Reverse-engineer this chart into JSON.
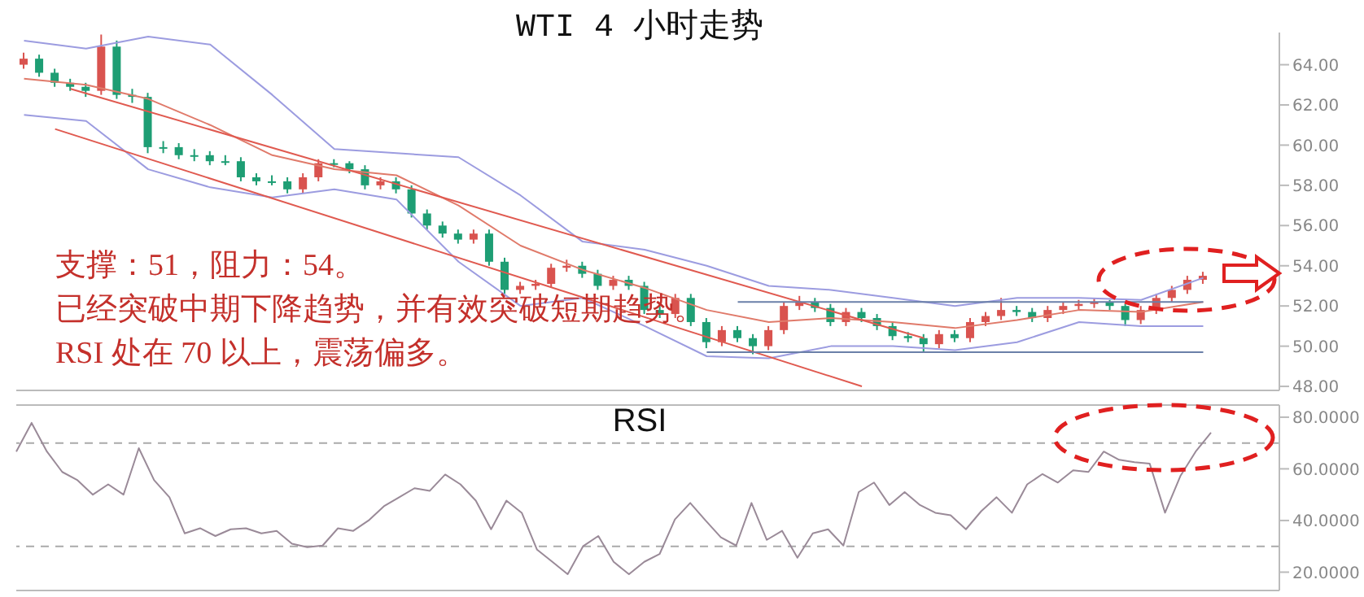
{
  "chart_data": [
    {
      "type": "candlestick",
      "title": "WTI 4 小时走势",
      "annotations": [
        "支撑：51，阻力：54。",
        "已经突破中期下降趋势，并有效突破短期趋势。",
        "RSI 处在 70 以上，震荡偏多。"
      ],
      "categories": [
        null,
        null,
        null,
        null,
        null,
        null,
        null,
        null,
        null,
        null,
        null,
        null,
        null,
        null,
        null,
        null,
        null,
        null,
        null,
        null,
        null,
        null,
        null,
        null,
        null,
        null,
        null,
        null,
        null,
        null,
        null,
        null,
        null,
        null,
        null,
        null,
        null,
        null,
        null,
        null,
        null,
        null,
        null,
        null,
        null,
        null,
        null,
        null,
        null,
        null,
        null,
        null,
        null,
        null,
        null,
        null,
        null,
        null,
        null,
        null,
        null,
        null,
        null,
        null,
        null,
        null,
        null,
        null,
        null,
        null,
        null,
        null,
        null,
        null,
        null,
        null,
        null
      ],
      "ohlc": [
        [
          64.0,
          64.6,
          63.8,
          64.3
        ],
        [
          64.3,
          64.5,
          63.4,
          63.6
        ],
        [
          63.6,
          63.8,
          62.9,
          63.1
        ],
        [
          63.1,
          63.3,
          62.7,
          62.9
        ],
        [
          62.9,
          63.1,
          62.4,
          62.7
        ],
        [
          62.7,
          65.5,
          62.5,
          64.9
        ],
        [
          64.9,
          65.2,
          62.3,
          62.5
        ],
        [
          62.5,
          62.8,
          62.1,
          62.4
        ],
        [
          62.4,
          62.6,
          59.6,
          59.9
        ],
        [
          59.9,
          60.2,
          59.6,
          59.9
        ],
        [
          59.9,
          60.1,
          59.3,
          59.5
        ],
        [
          59.5,
          59.8,
          59.2,
          59.5
        ],
        [
          59.5,
          59.7,
          59.0,
          59.2
        ],
        [
          59.2,
          59.5,
          59.0,
          59.2
        ],
        [
          59.2,
          59.4,
          58.2,
          58.4
        ],
        [
          58.4,
          58.6,
          58.0,
          58.2
        ],
        [
          58.2,
          58.5,
          58.0,
          58.2
        ],
        [
          58.2,
          58.4,
          57.6,
          57.8
        ],
        [
          57.8,
          58.6,
          57.6,
          58.4
        ],
        [
          58.4,
          59.3,
          58.2,
          59.1
        ],
        [
          59.1,
          59.3,
          58.9,
          59.1
        ],
        [
          59.1,
          59.2,
          58.6,
          58.8
        ],
        [
          58.8,
          59.0,
          57.8,
          58.0
        ],
        [
          58.0,
          58.4,
          57.8,
          58.2
        ],
        [
          58.2,
          58.4,
          57.6,
          57.8
        ],
        [
          57.8,
          58.0,
          56.4,
          56.6
        ],
        [
          56.6,
          56.8,
          55.8,
          56.0
        ],
        [
          56.0,
          56.2,
          55.4,
          55.6
        ],
        [
          55.6,
          55.8,
          55.1,
          55.3
        ],
        [
          55.3,
          55.8,
          55.1,
          55.6
        ],
        [
          55.6,
          55.8,
          54.0,
          54.2
        ],
        [
          54.2,
          54.4,
          52.6,
          52.8
        ],
        [
          52.8,
          53.2,
          52.6,
          53.0
        ],
        [
          53.0,
          53.3,
          52.8,
          53.1
        ],
        [
          53.1,
          54.1,
          52.9,
          53.9
        ],
        [
          53.9,
          54.3,
          53.7,
          54.0
        ],
        [
          54.0,
          54.2,
          53.4,
          53.6
        ],
        [
          53.6,
          53.8,
          52.8,
          53.0
        ],
        [
          53.0,
          53.5,
          52.8,
          53.3
        ],
        [
          53.3,
          53.5,
          52.8,
          53.0
        ],
        [
          53.0,
          53.2,
          51.6,
          51.8
        ],
        [
          51.8,
          52.0,
          51.4,
          51.6
        ],
        [
          51.6,
          52.6,
          51.4,
          52.4
        ],
        [
          52.4,
          52.6,
          51.0,
          51.2
        ],
        [
          51.2,
          51.4,
          49.9,
          50.2
        ],
        [
          50.2,
          51.0,
          50.0,
          50.8
        ],
        [
          50.8,
          51.0,
          50.2,
          50.4
        ],
        [
          50.4,
          50.6,
          49.6,
          50.0
        ],
        [
          50.0,
          51.0,
          49.8,
          50.8
        ],
        [
          50.8,
          52.2,
          50.6,
          52.0
        ],
        [
          52.0,
          52.5,
          51.8,
          52.2
        ],
        [
          52.2,
          52.4,
          51.7,
          51.9
        ],
        [
          51.9,
          52.1,
          51.0,
          51.2
        ],
        [
          51.2,
          51.9,
          51.0,
          51.7
        ],
        [
          51.7,
          51.9,
          51.2,
          51.4
        ],
        [
          51.4,
          51.6,
          50.8,
          51.0
        ],
        [
          51.0,
          51.2,
          50.3,
          50.5
        ],
        [
          50.5,
          50.7,
          50.2,
          50.4
        ],
        [
          50.4,
          50.6,
          49.7,
          50.1
        ],
        [
          50.1,
          50.8,
          49.9,
          50.6
        ],
        [
          50.6,
          50.8,
          50.2,
          50.4
        ],
        [
          50.4,
          51.4,
          50.2,
          51.2
        ],
        [
          51.2,
          51.7,
          51.0,
          51.5
        ],
        [
          51.5,
          52.4,
          51.3,
          51.8
        ],
        [
          51.8,
          52.0,
          51.5,
          51.7
        ],
        [
          51.7,
          51.9,
          51.2,
          51.4
        ],
        [
          51.4,
          52.0,
          51.2,
          51.8
        ],
        [
          51.8,
          52.2,
          51.6,
          52.0
        ],
        [
          52.0,
          52.3,
          51.8,
          52.1
        ],
        [
          52.1,
          52.4,
          51.9,
          52.2
        ],
        [
          52.2,
          52.3,
          51.8,
          52.0
        ],
        [
          52.0,
          52.1,
          51.0,
          51.3
        ],
        [
          51.3,
          52.0,
          51.1,
          51.8
        ],
        [
          51.8,
          52.6,
          51.6,
          52.4
        ],
        [
          52.4,
          53.0,
          52.2,
          52.8
        ],
        [
          52.8,
          53.5,
          52.6,
          53.3
        ],
        [
          53.3,
          53.7,
          53.1,
          53.5
        ]
      ],
      "colors": [
        "#d9534f",
        "#1e9e74",
        "#1e9e74",
        "#1e9e74",
        "#1e9e74",
        "#d9534f",
        "#1e9e74",
        "#1e9e74",
        "#1e9e74",
        "#1e9e74",
        "#1e9e74",
        "#1e9e74",
        "#1e9e74",
        "#1e9e74",
        "#1e9e74",
        "#1e9e74",
        "#1e9e74",
        "#1e9e74",
        "#d9534f",
        "#d9534f",
        "#1e9e74",
        "#1e9e74",
        "#1e9e74",
        "#d9534f",
        "#1e9e74",
        "#1e9e74",
        "#1e9e74",
        "#1e9e74",
        "#1e9e74",
        "#d9534f",
        "#1e9e74",
        "#1e9e74",
        "#d9534f",
        "#d9534f",
        "#d9534f",
        "#d9534f",
        "#1e9e74",
        "#1e9e74",
        "#d9534f",
        "#1e9e74",
        "#1e9e74",
        "#1e9e74",
        "#d9534f",
        "#1e9e74",
        "#1e9e74",
        "#d9534f",
        "#1e9e74",
        "#1e9e74",
        "#d9534f",
        "#d9534f",
        "#d9534f",
        "#1e9e74",
        "#1e9e74",
        "#d9534f",
        "#1e9e74",
        "#1e9e74",
        "#1e9e74",
        "#1e9e74",
        "#1e9e74",
        "#d9534f",
        "#1e9e74",
        "#d9534f",
        "#d9534f",
        "#d9534f",
        "#1e9e74",
        "#1e9e74",
        "#d9534f",
        "#d9534f",
        "#d9534f",
        "#d9534f",
        "#1e9e74",
        "#1e9e74",
        "#d9534f",
        "#d9534f",
        "#d9534f",
        "#d9534f",
        "#d9534f"
      ],
      "series": [
        {
          "type": "line",
          "color": "#9c9ce0",
          "values": [
            65.2,
            null,
            null,
            null,
            64.8,
            null,
            null,
            null,
            65.4,
            null,
            null,
            null,
            65.0,
            null,
            null,
            null,
            62.5,
            null,
            null,
            null,
            59.8,
            null,
            null,
            null,
            59.6,
            null,
            null,
            null,
            59.4,
            null,
            null,
            null,
            57.5,
            null,
            null,
            null,
            55.2,
            null,
            null,
            null,
            54.8,
            null,
            null,
            null,
            54.0,
            null,
            null,
            null,
            53.0,
            null,
            null,
            null,
            52.8,
            null,
            null,
            null,
            52.4,
            null,
            null,
            null,
            52.0,
            null,
            null,
            null,
            52.4,
            null,
            null,
            null,
            52.4,
            null,
            null,
            null,
            52.3,
            null,
            null,
            null,
            53.4
          ]
        },
        {
          "type": "line",
          "color": "#9c9ce0",
          "values": [
            61.5,
            null,
            null,
            null,
            61.2,
            null,
            null,
            null,
            58.8,
            null,
            null,
            null,
            57.9,
            null,
            null,
            null,
            57.4,
            null,
            null,
            null,
            57.8,
            null,
            null,
            null,
            57.3,
            null,
            null,
            null,
            54.2,
            null,
            null,
            null,
            52.0,
            null,
            null,
            null,
            52.4,
            null,
            null,
            null,
            51.0,
            null,
            null,
            null,
            49.5,
            null,
            null,
            null,
            49.4,
            null,
            null,
            null,
            50.0,
            null,
            null,
            null,
            50.0,
            null,
            null,
            null,
            49.8,
            null,
            null,
            null,
            50.2,
            null,
            null,
            null,
            51.2,
            null,
            null,
            null,
            51.0,
            null,
            null,
            null,
            51.0
          ]
        },
        {
          "type": "line",
          "color": "#e07a6a",
          "values": [
            63.3,
            null,
            null,
            null,
            63.0,
            null,
            null,
            null,
            62.3,
            null,
            null,
            null,
            61.0,
            null,
            null,
            null,
            59.5,
            null,
            null,
            null,
            58.8,
            null,
            null,
            null,
            58.5,
            null,
            null,
            null,
            57.0,
            null,
            null,
            null,
            55.0,
            null,
            null,
            null,
            53.8,
            null,
            null,
            null,
            52.9,
            null,
            null,
            null,
            51.8,
            null,
            null,
            null,
            51.2,
            null,
            null,
            null,
            51.4,
            null,
            null,
            null,
            51.2,
            null,
            null,
            null,
            50.9,
            null,
            null,
            null,
            51.3,
            null,
            null,
            null,
            51.8,
            null,
            null,
            null,
            51.7,
            null,
            null,
            null,
            52.2
          ]
        },
        {
          "type": "line",
          "color": "#e05a50",
          "values": [
            null,
            null,
            null,
            62.8,
            null,
            null,
            null,
            null,
            null,
            null,
            null,
            null,
            null,
            null,
            null,
            null,
            null,
            null,
            null,
            null,
            null,
            null,
            null,
            null,
            null,
            null,
            null,
            null,
            null,
            null,
            null,
            null,
            null,
            null,
            null,
            null,
            null,
            null,
            null,
            null,
            null,
            null,
            null,
            null,
            null,
            null,
            null,
            null,
            null,
            null,
            null,
            null,
            null,
            null,
            null,
            null,
            null,
            null,
            50.4,
            null,
            null,
            null,
            null,
            null,
            null,
            null,
            null,
            null,
            null,
            null,
            null,
            null,
            null,
            null,
            null,
            null,
            null
          ]
        },
        {
          "type": "line",
          "color": "#e05a50",
          "values": [
            null,
            null,
            60.8,
            null,
            null,
            null,
            null,
            null,
            null,
            null,
            null,
            null,
            null,
            null,
            null,
            null,
            null,
            null,
            null,
            null,
            null,
            null,
            null,
            null,
            null,
            null,
            null,
            null,
            null,
            null,
            null,
            null,
            null,
            null,
            null,
            null,
            null,
            null,
            null,
            null,
            null,
            null,
            null,
            null,
            null,
            null,
            null,
            null,
            null,
            null,
            null,
            null,
            null,
            null,
            48.0,
            null,
            null,
            null,
            null,
            null,
            null,
            null,
            null,
            null,
            null,
            null,
            null,
            null,
            null,
            null,
            null,
            null,
            null,
            null,
            null,
            null,
            null
          ]
        },
        {
          "type": "line",
          "color": "#6a7fa8",
          "values": [
            null,
            null,
            null,
            null,
            null,
            null,
            null,
            null,
            null,
            null,
            null,
            null,
            null,
            null,
            null,
            null,
            null,
            null,
            null,
            null,
            null,
            null,
            null,
            null,
            null,
            null,
            null,
            null,
            null,
            null,
            null,
            null,
            null,
            null,
            null,
            null,
            null,
            null,
            null,
            null,
            null,
            null,
            null,
            null,
            null,
            null,
            52.2,
            null,
            null,
            null,
            null,
            null,
            null,
            null,
            null,
            null,
            null,
            null,
            null,
            null,
            null,
            null,
            null,
            null,
            null,
            null,
            null,
            null,
            null,
            null,
            null,
            null,
            null,
            null,
            null,
            null,
            52.2
          ]
        },
        {
          "type": "line",
          "color": "#6a7fa8",
          "values": [
            null,
            null,
            null,
            null,
            null,
            null,
            null,
            null,
            null,
            null,
            null,
            null,
            null,
            null,
            null,
            null,
            null,
            null,
            null,
            null,
            null,
            null,
            null,
            null,
            null,
            null,
            null,
            null,
            null,
            null,
            null,
            null,
            null,
            null,
            null,
            null,
            null,
            null,
            null,
            null,
            null,
            null,
            null,
            null,
            49.7,
            null,
            null,
            null,
            null,
            null,
            null,
            null,
            null,
            null,
            null,
            null,
            null,
            null,
            null,
            null,
            null,
            null,
            null,
            null,
            null,
            null,
            null,
            null,
            null,
            null,
            null,
            null,
            null,
            null,
            null,
            null,
            49.7
          ]
        }
      ],
      "ylim": [
        47.8,
        65.6
      ],
      "yticks": [
        {
          "value": 48,
          "label": "48.00"
        },
        {
          "value": 50,
          "label": "50.00"
        },
        {
          "value": 52,
          "label": "52.00"
        },
        {
          "value": 54,
          "label": "54.00"
        },
        {
          "value": 56,
          "label": "56.00"
        },
        {
          "value": 58,
          "label": "58.00"
        },
        {
          "value": 60,
          "label": "60.00"
        },
        {
          "value": 62,
          "label": "62.00"
        },
        {
          "value": 64,
          "label": "64.00"
        }
      ],
      "tick_labels": "y"
    },
    {
      "type": "line",
      "title": "RSI",
      "categories": [
        null,
        null,
        null,
        null,
        null,
        null,
        null,
        null,
        null,
        null,
        null,
        null,
        null,
        null,
        null,
        null,
        null,
        null,
        null,
        null,
        null,
        null,
        null,
        null,
        null,
        null,
        null,
        null,
        null,
        null,
        null,
        null,
        null,
        null,
        null,
        null,
        null,
        null,
        null,
        null,
        null,
        null,
        null,
        null,
        null,
        null,
        null,
        null,
        null,
        null,
        null,
        null,
        null,
        null,
        null,
        null,
        null,
        null,
        null,
        null,
        null,
        null,
        null,
        null,
        null,
        null,
        null,
        null,
        null,
        null,
        null,
        null,
        null,
        null,
        null,
        null,
        null,
        null,
        null
      ],
      "series": [
        {
          "color": "#9a8a98",
          "values": [
            66.7,
            77.8,
            66.7,
            58.8,
            55.6,
            50,
            54,
            50,
            68,
            55.6,
            49,
            35,
            37,
            34,
            36.6,
            37,
            35,
            36,
            31,
            29.7,
            30.3,
            37,
            36,
            40,
            45.5,
            49,
            52.5,
            51.5,
            57.8,
            54,
            47.7,
            36.6,
            47.7,
            43,
            28.7,
            24,
            19.2,
            30,
            34,
            24,
            19.2,
            24,
            27,
            40.4,
            46.8,
            40,
            33.5,
            30.3,
            46.8,
            32.5,
            36,
            25.6,
            35,
            36.6,
            30.3,
            51,
            54.7,
            46,
            51,
            46,
            43,
            42,
            36.6,
            43.6,
            49,
            43,
            54,
            58,
            54.7,
            59.4,
            58.8,
            66.7,
            63.5,
            62.6,
            62,
            43,
            57.2,
            66.7,
            74
          ]
        }
      ],
      "ref_lines": [
        {
          "axis": "y",
          "value": 70,
          "color": "#aaaaaa",
          "line_style": "dashed"
        },
        {
          "axis": "y",
          "value": 30,
          "color": "#aaaaaa",
          "line_style": "dashed"
        }
      ],
      "ylim": [
        12.9,
        84.7
      ],
      "yticks": [
        {
          "value": 20,
          "label": "20.0000"
        },
        {
          "value": 40,
          "label": "40.0000"
        },
        {
          "value": 60,
          "label": "60.0000"
        },
        {
          "value": 80,
          "label": "80.0000"
        }
      ],
      "tick_labels": "y"
    }
  ]
}
